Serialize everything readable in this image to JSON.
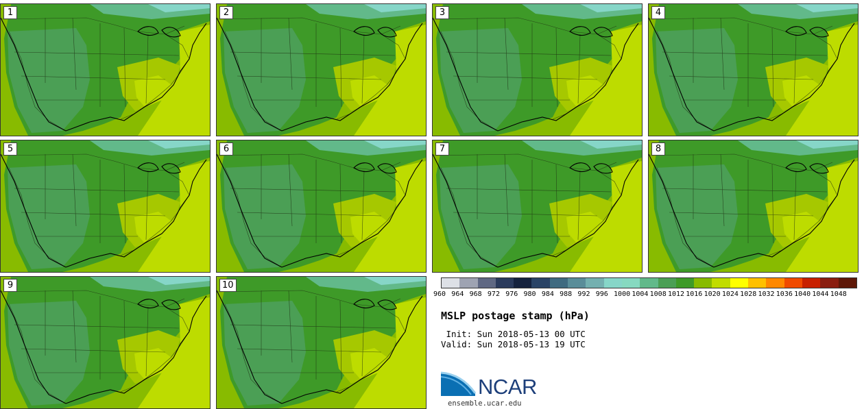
{
  "figure": {
    "title": "MSLP postage stamp (hPa)",
    "init": " Init: Sun 2018-05-13 00 UTC",
    "valid": "Valid: Sun 2018-05-13 19 UTC",
    "org": "NCAR",
    "url": "ensemble.ucar.edu"
  },
  "panels": [
    {
      "label": "1"
    },
    {
      "label": "2"
    },
    {
      "label": "3"
    },
    {
      "label": "4"
    },
    {
      "label": "5"
    },
    {
      "label": "6"
    },
    {
      "label": "7"
    },
    {
      "label": "8"
    },
    {
      "label": "9"
    },
    {
      "label": "10"
    }
  ],
  "colorbar": {
    "ticks": [
      "960",
      "964",
      "968",
      "972",
      "976",
      "980",
      "984",
      "988",
      "992",
      "996",
      "1000",
      "1004",
      "1008",
      "1012",
      "1016",
      "1020",
      "1024",
      "1028",
      "1032",
      "1036",
      "1040",
      "1044",
      "1048"
    ],
    "colors": [
      "#dde0e6",
      "#9ea3b2",
      "#5f6883",
      "#2a3a5c",
      "#15223e",
      "#2a4366",
      "#3f6a80",
      "#5a8d99",
      "#74b0b0",
      "#86d6c8",
      "#86d9c0",
      "#62b98a",
      "#4b9f55",
      "#3e9a28",
      "#88bb00",
      "#c1dc00",
      "#ffff00",
      "#ffc000",
      "#ff8800",
      "#f04a00",
      "#c82000",
      "#8a1e10",
      "#5e1808"
    ]
  },
  "map_colors": {
    "ocean": "#88bb00",
    "south": "#bddc00",
    "midland": "#3e9a28",
    "west": "#4b9f55",
    "north_band": "#62b98a",
    "north_low": "#86d6c8",
    "mid_yellow": "#a6c800"
  }
}
